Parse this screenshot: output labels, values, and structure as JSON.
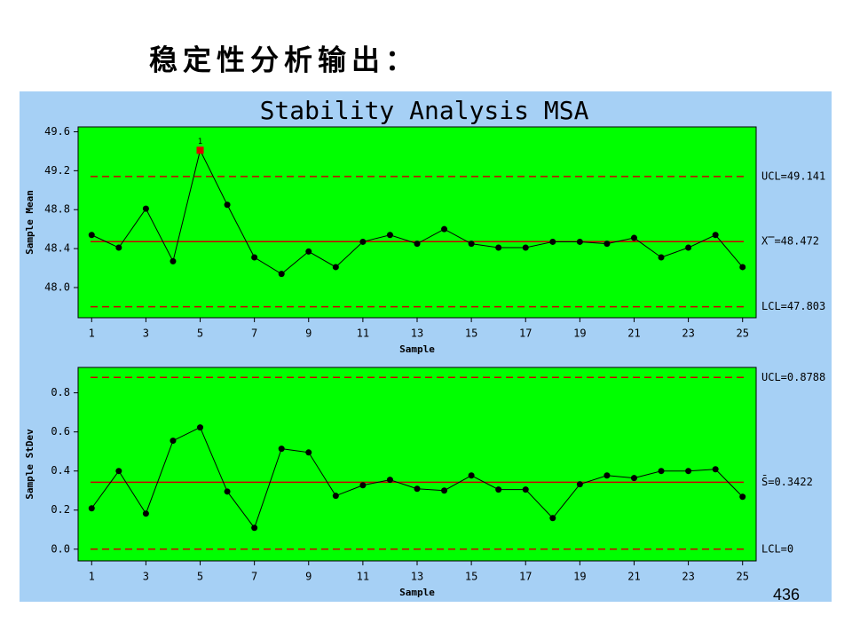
{
  "heading": "稳定性分析输出：",
  "chart_title": "Stability Analysis MSA",
  "page_number": "436",
  "chart_data": [
    {
      "type": "line",
      "xlabel": "Sample",
      "ylabel": "Sample Mean",
      "x": [
        1,
        2,
        3,
        4,
        5,
        6,
        7,
        8,
        9,
        10,
        11,
        12,
        13,
        14,
        15,
        16,
        17,
        18,
        19,
        20,
        21,
        22,
        23,
        24,
        25
      ],
      "series": [
        {
          "name": "Sample Mean",
          "color": "#000000",
          "values": [
            48.54,
            48.41,
            48.81,
            48.27,
            49.41,
            48.85,
            48.31,
            48.14,
            48.37,
            48.21,
            48.47,
            48.54,
            48.45,
            48.6,
            48.45,
            48.41,
            48.41,
            48.47,
            48.47,
            48.45,
            48.51,
            48.31,
            48.41,
            48.54,
            48.21
          ],
          "point_labels": [
            null,
            null,
            null,
            null,
            "1",
            null,
            null,
            null,
            null,
            null,
            null,
            null,
            null,
            null,
            null,
            null,
            null,
            null,
            null,
            null,
            null,
            null,
            null,
            null,
            null
          ],
          "highlight_color": "#e00000"
        }
      ],
      "limits": [
        {
          "label": "UCL=49.141",
          "value": 49.141,
          "style": "dashed"
        },
        {
          "label": "X̿=48.472",
          "value": 48.472,
          "style": "solid"
        },
        {
          "label": "LCL=47.803",
          "value": 47.803,
          "style": "dashed"
        }
      ],
      "limit_color": "#cc0000",
      "background": "#00ff00",
      "xlim": [
        0.5,
        25.5
      ],
      "xticks": [
        1,
        3,
        5,
        7,
        9,
        11,
        13,
        15,
        17,
        19,
        21,
        23,
        25
      ],
      "ylim": [
        47.69,
        49.65
      ],
      "yticks": [
        {
          "value": 48.0,
          "label": "48.0"
        },
        48.4,
        48.8,
        49.2,
        49.6
      ]
    },
    {
      "type": "line",
      "xlabel": "Sample",
      "ylabel": "Sample StDev",
      "x": [
        1,
        2,
        3,
        4,
        5,
        6,
        7,
        8,
        9,
        10,
        11,
        12,
        13,
        14,
        15,
        16,
        17,
        18,
        19,
        20,
        21,
        22,
        23,
        24,
        25
      ],
      "series": [
        {
          "name": "Sample StDev",
          "color": "#000000",
          "values": [
            0.209,
            0.4,
            0.182,
            0.555,
            0.623,
            0.295,
            0.109,
            0.514,
            0.495,
            0.273,
            0.327,
            0.355,
            0.309,
            0.3,
            0.377,
            0.305,
            0.305,
            0.159,
            0.332,
            0.377,
            0.364,
            0.4,
            0.4,
            0.409,
            0.268
          ]
        }
      ],
      "limits": [
        {
          "label": "UCL=0.8788",
          "value": 0.8788,
          "style": "dashed"
        },
        {
          "label": "S̄=0.3422",
          "value": 0.3422,
          "style": "solid"
        },
        {
          "label": "LCL=0",
          "value": 0,
          "style": "dashed"
        }
      ],
      "limit_color": "#cc0000",
      "background": "#00ff00",
      "xlim": [
        0.5,
        25.5
      ],
      "xticks": [
        1,
        3,
        5,
        7,
        9,
        11,
        13,
        15,
        17,
        19,
        21,
        23,
        25
      ],
      "ylim": [
        -0.06,
        0.93
      ],
      "yticks": [
        {
          "value": 0,
          "label": "0.0"
        },
        0.2,
        0.4,
        0.6,
        0.8
      ]
    }
  ]
}
